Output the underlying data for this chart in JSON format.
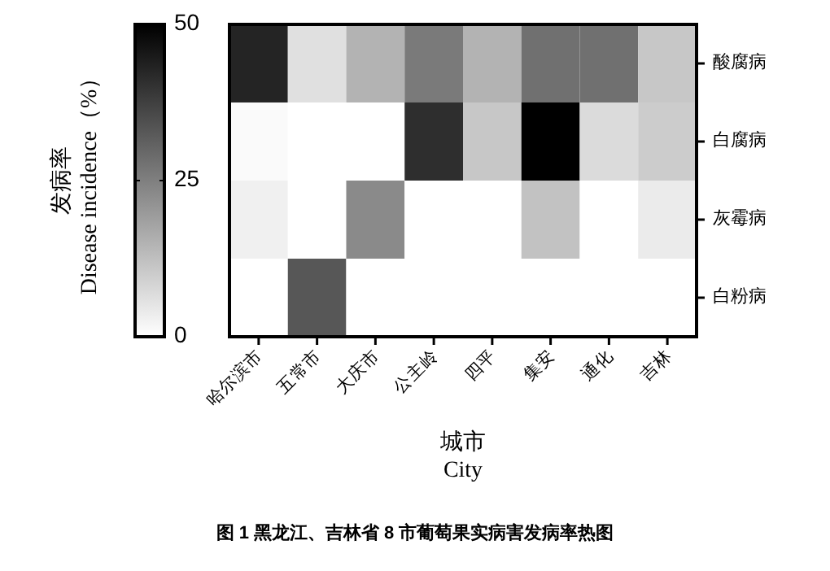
{
  "chart_data": {
    "type": "heatmap",
    "title": "图 1 黑龙江、吉林省 8 市葡萄果实病害发病率热图",
    "xlabel": "城市\nCity",
    "clabel": "发病率\nDisease incidence（%）",
    "categories": [
      "哈尔滨市",
      "五常市",
      "大庆市",
      "公主岭",
      "四平",
      "集安",
      "通化",
      "吉林"
    ],
    "y_categories": [
      "酸腐病",
      "白腐病",
      "灰霉病",
      "白粉病"
    ],
    "cells": [
      [
        43,
        6,
        15,
        26,
        15,
        28,
        28,
        11
      ],
      [
        1,
        0,
        0,
        41,
        11,
        50,
        7,
        10
      ],
      [
        3,
        0,
        23,
        0,
        0,
        12,
        0,
        4
      ],
      [
        0,
        33,
        0,
        0,
        0,
        0,
        0,
        0
      ]
    ],
    "clim": [
      0,
      50
    ],
    "cticks": [
      0,
      25,
      50
    ]
  }
}
